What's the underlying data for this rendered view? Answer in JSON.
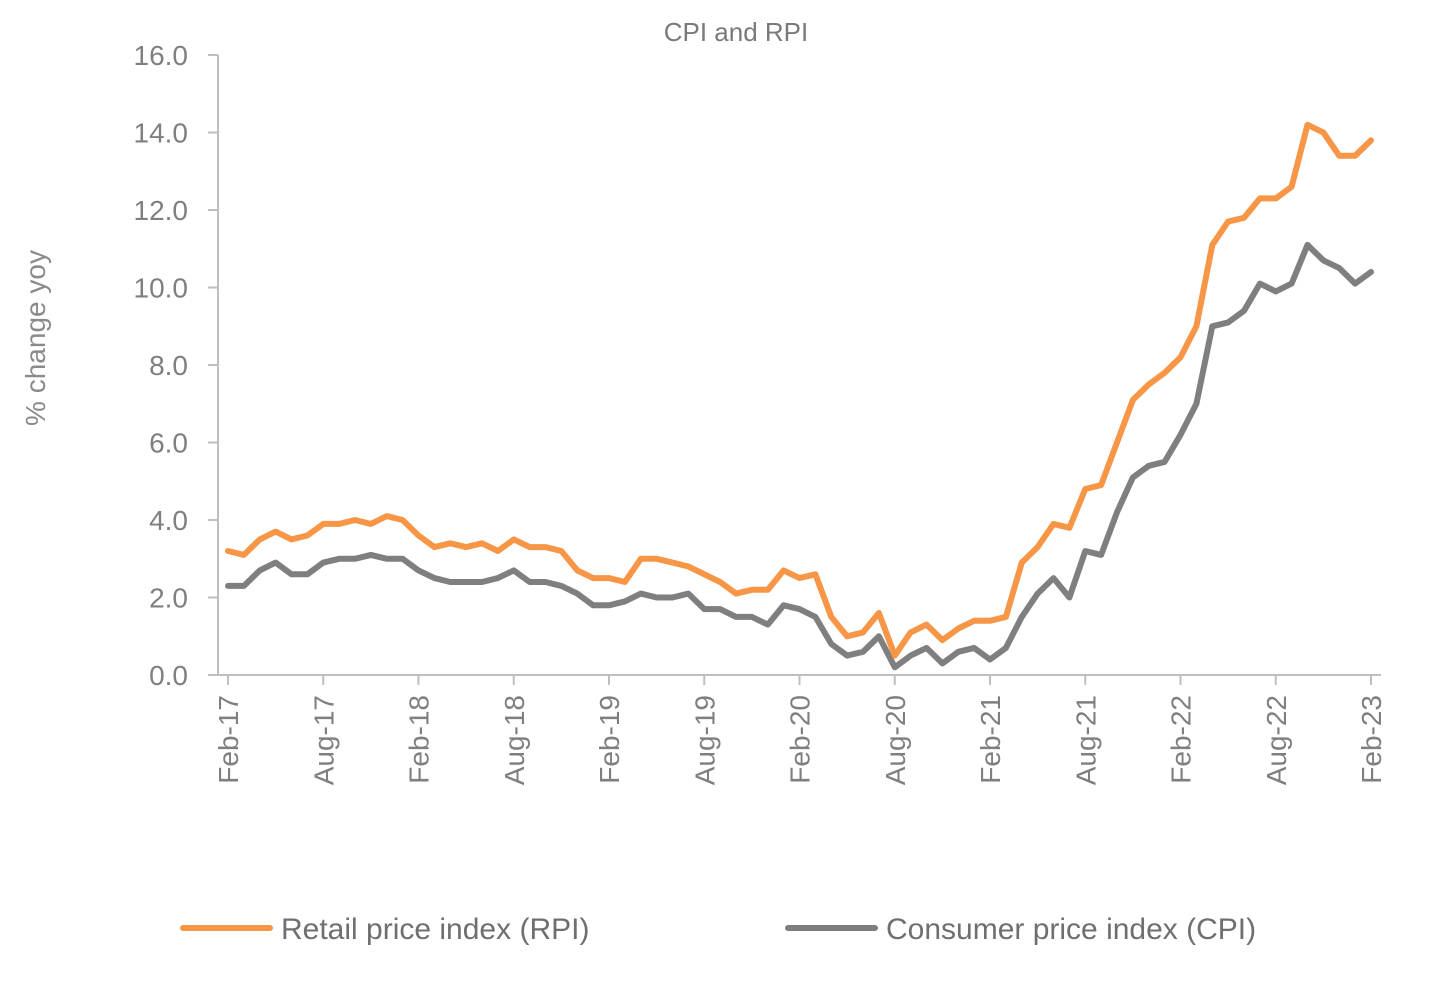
{
  "chart_data": {
    "type": "line",
    "title": "CPI and RPI",
    "xlabel": "",
    "ylabel": "% change yoy",
    "ylim": [
      0,
      16
    ],
    "ytick_labels": [
      "0.0",
      "2.0",
      "4.0",
      "6.0",
      "8.0",
      "10.0",
      "12.0",
      "14.0",
      "16.0"
    ],
    "xtick_labels": [
      "Feb-17",
      "Aug-17",
      "Feb-18",
      "Aug-18",
      "Feb-19",
      "Aug-19",
      "Feb-20",
      "Aug-20",
      "Feb-21",
      "Aug-21",
      "Feb-22",
      "Aug-22",
      "Feb-23"
    ],
    "months": [
      "Feb-17",
      "Mar-17",
      "Apr-17",
      "May-17",
      "Jun-17",
      "Jul-17",
      "Aug-17",
      "Sep-17",
      "Oct-17",
      "Nov-17",
      "Dec-17",
      "Jan-18",
      "Feb-18",
      "Mar-18",
      "Apr-18",
      "May-18",
      "Jun-18",
      "Jul-18",
      "Aug-18",
      "Sep-18",
      "Oct-18",
      "Nov-18",
      "Dec-18",
      "Jan-19",
      "Feb-19",
      "Mar-19",
      "Apr-19",
      "May-19",
      "Jun-19",
      "Jul-19",
      "Aug-19",
      "Sep-19",
      "Oct-19",
      "Nov-19",
      "Dec-19",
      "Jan-20",
      "Feb-20",
      "Mar-20",
      "Apr-20",
      "May-20",
      "Jun-20",
      "Jul-20",
      "Aug-20",
      "Sep-20",
      "Oct-20",
      "Nov-20",
      "Dec-20",
      "Jan-21",
      "Feb-21",
      "Mar-21",
      "Apr-21",
      "May-21",
      "Jun-21",
      "Jul-21",
      "Aug-21",
      "Sep-21",
      "Oct-21",
      "Nov-21",
      "Dec-21",
      "Jan-22",
      "Feb-22",
      "Mar-22",
      "Apr-22",
      "May-22",
      "Jun-22",
      "Jul-22",
      "Aug-22",
      "Sep-22",
      "Oct-22",
      "Nov-22",
      "Dec-22",
      "Jan-23",
      "Feb-23"
    ],
    "series": [
      {
        "name": "Retail price index (RPI)",
        "color": "#f79646",
        "values": [
          3.2,
          3.1,
          3.5,
          3.7,
          3.5,
          3.6,
          3.9,
          3.9,
          4.0,
          3.9,
          4.1,
          4.0,
          3.6,
          3.3,
          3.4,
          3.3,
          3.4,
          3.2,
          3.5,
          3.3,
          3.3,
          3.2,
          2.7,
          2.5,
          2.5,
          2.4,
          3.0,
          3.0,
          2.9,
          2.8,
          2.6,
          2.4,
          2.1,
          2.2,
          2.2,
          2.7,
          2.5,
          2.6,
          1.5,
          1.0,
          1.1,
          1.6,
          0.5,
          1.1,
          1.3,
          0.9,
          1.2,
          1.4,
          1.4,
          1.5,
          2.9,
          3.3,
          3.9,
          3.8,
          4.8,
          4.9,
          6.0,
          7.1,
          7.5,
          7.8,
          8.2,
          9.0,
          11.1,
          11.7,
          11.8,
          12.3,
          12.3,
          12.6,
          14.2,
          14.0,
          13.4,
          13.4,
          13.8
        ]
      },
      {
        "name": "Consumer price index (CPI)",
        "color": "#7f7f7f",
        "values": [
          2.3,
          2.3,
          2.7,
          2.9,
          2.6,
          2.6,
          2.9,
          3.0,
          3.0,
          3.1,
          3.0,
          3.0,
          2.7,
          2.5,
          2.4,
          2.4,
          2.4,
          2.5,
          2.7,
          2.4,
          2.4,
          2.3,
          2.1,
          1.8,
          1.8,
          1.9,
          2.1,
          2.0,
          2.0,
          2.1,
          1.7,
          1.7,
          1.5,
          1.5,
          1.3,
          1.8,
          1.7,
          1.5,
          0.8,
          0.5,
          0.6,
          1.0,
          0.2,
          0.5,
          0.7,
          0.3,
          0.6,
          0.7,
          0.4,
          0.7,
          1.5,
          2.1,
          2.5,
          2.0,
          3.2,
          3.1,
          4.2,
          5.1,
          5.4,
          5.5,
          6.2,
          7.0,
          9.0,
          9.1,
          9.4,
          10.1,
          9.9,
          10.1,
          11.1,
          10.7,
          10.5,
          10.1,
          10.4
        ]
      }
    ],
    "legend": "bottom"
  }
}
